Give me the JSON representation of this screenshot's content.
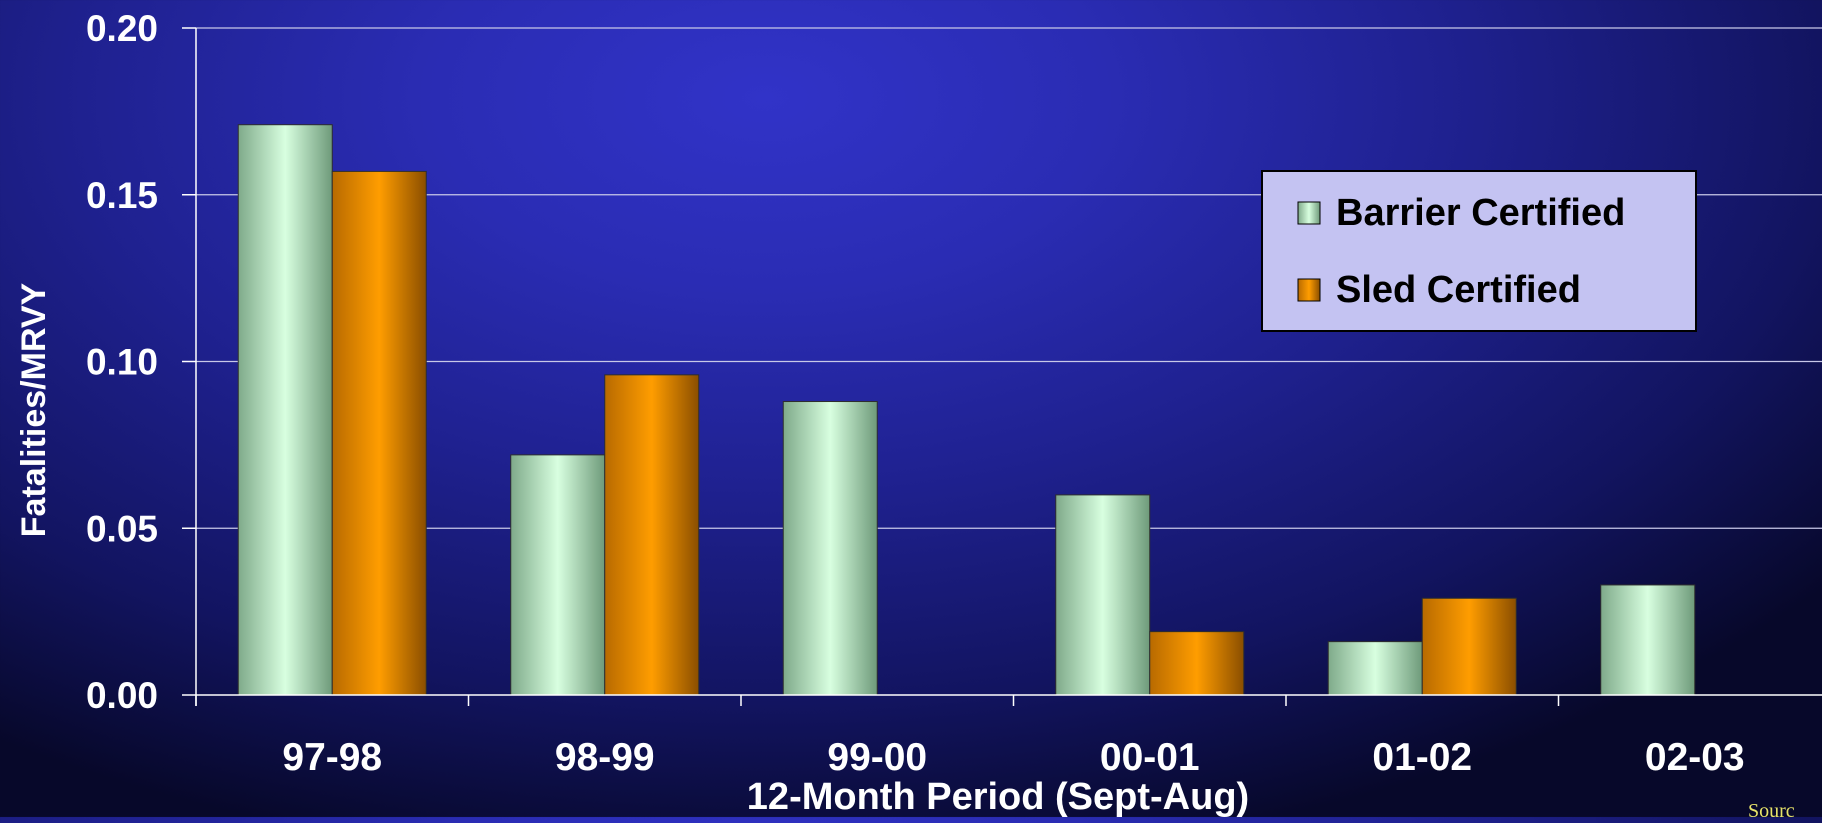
{
  "chart_data": {
    "type": "bar",
    "categories": [
      "97-98",
      "98-99",
      "99-00",
      "00-01",
      "01-02",
      "02-03"
    ],
    "series": [
      {
        "name": "Barrier Certified",
        "values": [
          0.171,
          0.072,
          0.088,
          0.06,
          0.016,
          0.033
        ],
        "color": "#a8e6b8"
      },
      {
        "name": "Sled Certified",
        "values": [
          0.157,
          0.096,
          null,
          0.019,
          0.029,
          null
        ],
        "color": "#ff9a00"
      }
    ],
    "ylim": [
      0,
      0.2
    ],
    "yticks": [
      "0.00",
      "0.05",
      "0.10",
      "0.15",
      "0.20"
    ],
    "ylabel": "Fatalities/MRVY",
    "xlabel": "12-Month Period (Sept-Aug)",
    "grid": true,
    "legend_position": "top-right"
  },
  "source_text": "Sourc"
}
